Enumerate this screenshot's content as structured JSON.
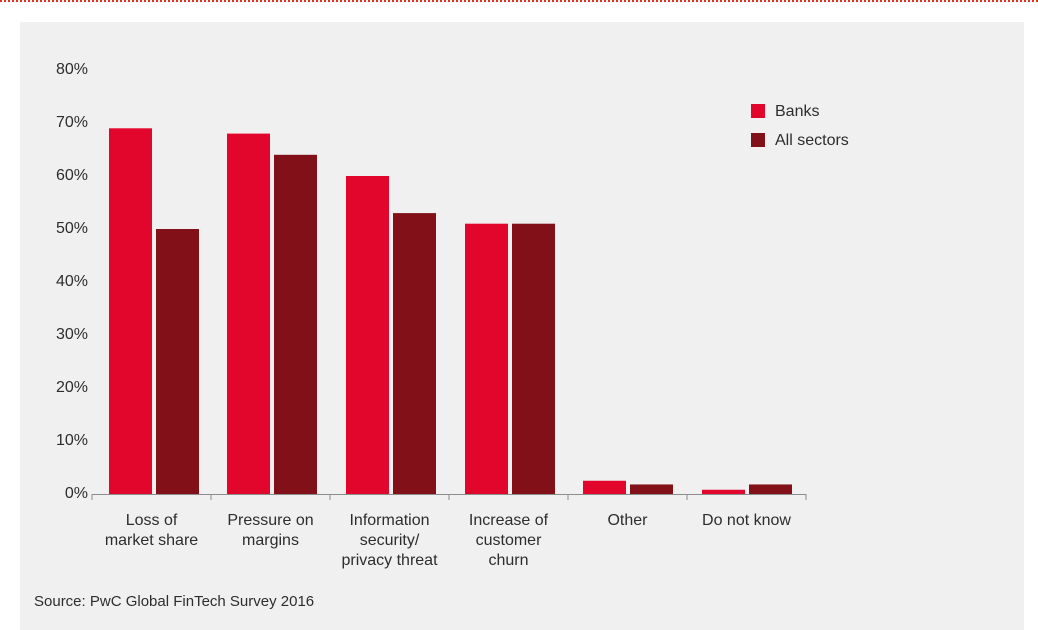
{
  "source": "Source: PwC Global FinTech Survey 2016",
  "colors": {
    "background": "#f0f0f0",
    "accent_rule": "#e0301e",
    "text": "#2d2d2d",
    "axis": "#8c8c8c"
  },
  "chart_data": {
    "type": "bar",
    "title": "",
    "xlabel": "",
    "ylabel": "",
    "categories": [
      [
        "Loss of",
        "market share"
      ],
      [
        "Pressure on",
        "margins"
      ],
      [
        "Information",
        "security/",
        "privacy threat"
      ],
      [
        "Increase of",
        "customer",
        "churn"
      ],
      [
        "Other"
      ],
      [
        "Do not know"
      ]
    ],
    "series": [
      {
        "name": "Banks",
        "color": "#e2062c",
        "values": [
          69,
          68,
          60,
          51,
          2.5,
          0.8
        ]
      },
      {
        "name": "All sectors",
        "color": "#811019",
        "values": [
          50,
          64,
          53,
          51,
          1.8,
          1.8
        ]
      }
    ],
    "ylim": [
      0,
      80
    ],
    "yticks": [
      "0%",
      "10%",
      "20%",
      "30%",
      "40%",
      "50%",
      "60%",
      "70%",
      "80%"
    ],
    "grid": false,
    "legend_position": "top-right"
  }
}
